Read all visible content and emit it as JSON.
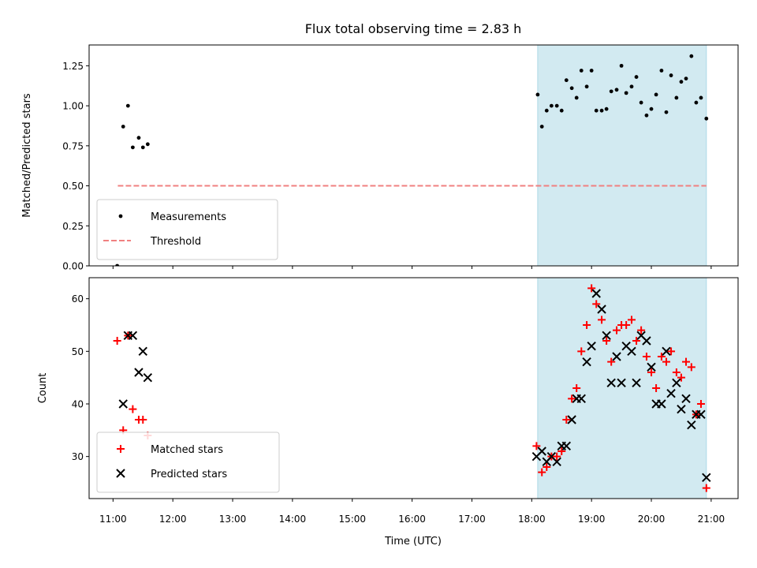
{
  "title": "Flux total observing time = 2.83 h",
  "colors": {
    "span": "#add8e6",
    "matched": "#ff0000",
    "predicted": "#000000",
    "measurement": "#000000",
    "threshold": "#f08080"
  },
  "chart_data": [
    {
      "type": "scatter",
      "panel": "top",
      "ylabel": "Matched/Predicted stars",
      "xlim": [
        10.6,
        21.45
      ],
      "ylim": [
        0,
        1.38
      ],
      "yticks": [
        0,
        0.25,
        0.5,
        0.75,
        1.0,
        1.25
      ],
      "ytick_labels": [
        "0.00",
        "0.25",
        "0.50",
        "0.75",
        "1.00",
        "1.25"
      ],
      "shaded_span": [
        18.1,
        20.92
      ],
      "threshold": {
        "y": 0.5,
        "x_from": 11.08,
        "x_to": 20.92
      },
      "legend": [
        "Measurements",
        "Threshold"
      ],
      "series": [
        {
          "name": "Measurements",
          "x": [
            11.07,
            11.17,
            11.25,
            11.33,
            11.43,
            11.5,
            11.58,
            18.1,
            18.17,
            18.25,
            18.33,
            18.42,
            18.5,
            18.58,
            18.67,
            18.75,
            18.83,
            18.92,
            19.0,
            19.08,
            19.17,
            19.25,
            19.33,
            19.42,
            19.5,
            19.58,
            19.67,
            19.75,
            19.83,
            19.92,
            20.0,
            20.08,
            20.17,
            20.25,
            20.33,
            20.42,
            20.5,
            20.58,
            20.67,
            20.75,
            20.83,
            20.92
          ],
          "y": [
            0.0,
            0.87,
            1.0,
            0.74,
            0.8,
            0.74,
            0.76,
            1.07,
            0.87,
            0.97,
            1.0,
            1.0,
            0.97,
            1.16,
            1.11,
            1.05,
            1.22,
            1.12,
            1.22,
            0.97,
            0.97,
            0.98,
            1.09,
            1.1,
            1.25,
            1.08,
            1.12,
            1.18,
            1.02,
            0.94,
            0.98,
            1.07,
            1.22,
            0.96,
            1.19,
            1.05,
            1.15,
            1.17,
            1.31,
            1.02,
            1.05,
            0.92
          ]
        }
      ]
    },
    {
      "type": "scatter",
      "panel": "bottom",
      "xlabel": "Time (UTC)",
      "ylabel": "Count",
      "xlim": [
        10.6,
        21.45
      ],
      "ylim": [
        22,
        64
      ],
      "yticks": [
        30,
        40,
        50,
        60
      ],
      "xticks": [
        11,
        12,
        13,
        14,
        15,
        16,
        17,
        18,
        19,
        20,
        21
      ],
      "xtick_labels": [
        "11:00",
        "12:00",
        "13:00",
        "14:00",
        "15:00",
        "16:00",
        "17:00",
        "18:00",
        "19:00",
        "20:00",
        "21:00"
      ],
      "shaded_span": [
        18.1,
        20.92
      ],
      "legend": [
        "Matched stars",
        "Predicted stars"
      ],
      "series": [
        {
          "name": "Matched stars",
          "marker": "+",
          "x": [
            11.07,
            11.17,
            11.25,
            11.33,
            11.43,
            11.5,
            11.58,
            18.08,
            18.17,
            18.25,
            18.33,
            18.42,
            18.5,
            18.58,
            18.67,
            18.75,
            18.83,
            18.92,
            19.0,
            19.08,
            19.17,
            19.25,
            19.33,
            19.42,
            19.5,
            19.58,
            19.67,
            19.75,
            19.83,
            19.92,
            20.0,
            20.08,
            20.17,
            20.25,
            20.33,
            20.42,
            20.5,
            20.58,
            20.67,
            20.75,
            20.83,
            20.92
          ],
          "y": [
            52,
            35,
            53,
            39,
            37,
            37,
            34,
            32,
            27,
            28,
            30,
            30,
            31,
            37,
            41,
            43,
            50,
            55,
            62,
            59,
            56,
            52,
            48,
            54,
            55,
            55,
            56,
            52,
            54,
            49,
            46,
            43,
            49,
            48,
            50,
            46,
            45,
            48,
            47,
            38,
            40,
            24
          ]
        },
        {
          "name": "Predicted stars",
          "marker": "x",
          "x": [
            11.17,
            11.25,
            11.33,
            11.43,
            11.5,
            11.58,
            18.08,
            18.17,
            18.25,
            18.33,
            18.42,
            18.5,
            18.58,
            18.67,
            18.75,
            18.83,
            18.92,
            19.0,
            19.08,
            19.17,
            19.25,
            19.33,
            19.42,
            19.5,
            19.58,
            19.67,
            19.75,
            19.83,
            19.92,
            20.0,
            20.08,
            20.17,
            20.25,
            20.33,
            20.42,
            20.5,
            20.58,
            20.67,
            20.75,
            20.83,
            20.92
          ],
          "y": [
            40,
            53,
            53,
            46,
            50,
            45,
            30,
            31,
            29,
            30,
            29,
            32,
            32,
            37,
            41,
            41,
            48,
            51,
            61,
            58,
            53,
            44,
            49,
            44,
            51,
            50,
            44,
            53,
            52,
            47,
            40,
            40,
            50,
            42,
            44,
            39,
            41,
            36,
            38,
            38,
            26
          ]
        }
      ]
    }
  ]
}
